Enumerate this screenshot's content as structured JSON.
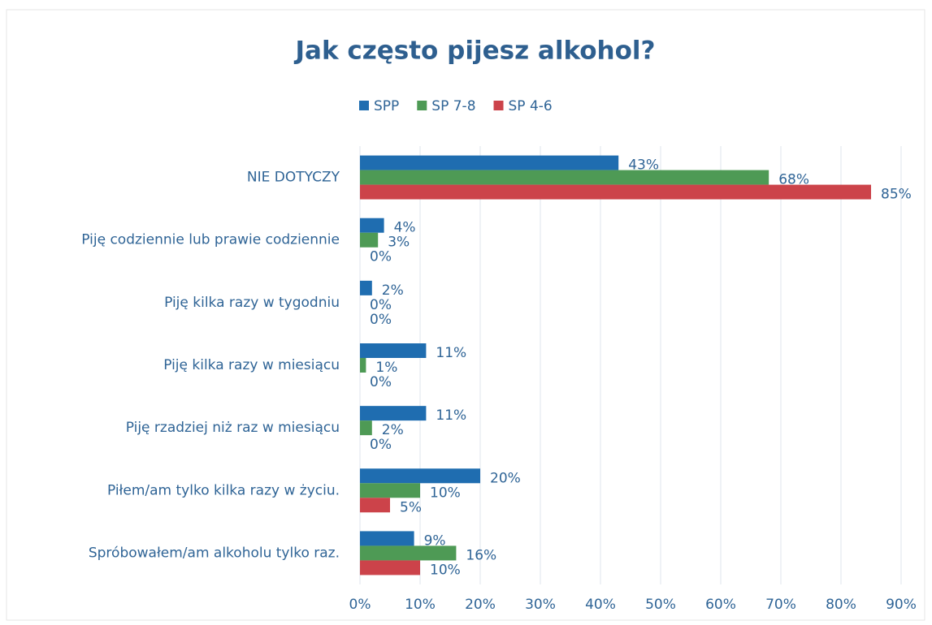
{
  "chart_data": {
    "type": "hbar",
    "title": "Jak często pijesz alkohol?",
    "categories": [
      "NIE DOTYCZY",
      "Piję codziennie lub prawie codziennie",
      "Piję kilka razy w tygodniu",
      "Piję kilka razy w miesiącu",
      "Piję rzadziej niż raz w miesiącu",
      "Piłem/am tylko kilka razy w życiu.",
      "Spróbowałem/am alkoholu tylko raz."
    ],
    "series": [
      {
        "name": "SPP",
        "color": "#1f6db0",
        "values": [
          43,
          4,
          2,
          11,
          11,
          20,
          9
        ],
        "value_labels": [
          "43%",
          "4%",
          "2%",
          "11%",
          "11%",
          "20%",
          "9%"
        ]
      },
      {
        "name": "SP 7-8",
        "color": "#4e9a55",
        "values": [
          68,
          3,
          0,
          1,
          2,
          10,
          16
        ],
        "value_labels": [
          "68%",
          "3%",
          "0%",
          "1%",
          "2%",
          "10%",
          "16%"
        ]
      },
      {
        "name": "SP 4-6",
        "color": "#cc434a",
        "values": [
          85,
          0,
          0,
          0,
          0,
          5,
          10
        ],
        "value_labels": [
          "85%",
          "0%",
          "0%",
          "0%",
          "0%",
          "5%",
          "10%"
        ]
      }
    ],
    "xlim": [
      0,
      90
    ],
    "xticks": [
      {
        "value": 0,
        "label": "0%"
      },
      {
        "value": 10,
        "label": "10%"
      },
      {
        "value": 20,
        "label": "20%"
      },
      {
        "value": 30,
        "label": "30%"
      },
      {
        "value": 40,
        "label": "40%"
      },
      {
        "value": 50,
        "label": "50%"
      },
      {
        "value": 60,
        "label": "60%"
      },
      {
        "value": 70,
        "label": "70%"
      },
      {
        "value": 80,
        "label": "80%"
      },
      {
        "value": 90,
        "label": "90%"
      }
    ],
    "grid": true,
    "legend": "top"
  }
}
